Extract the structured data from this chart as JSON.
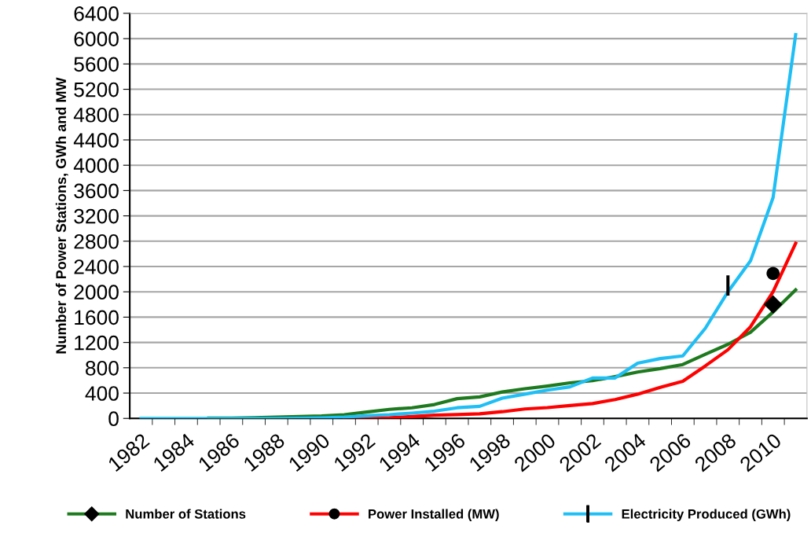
{
  "chart_data": {
    "type": "line",
    "ylabel": "Number of Power Stations, GWh and MW",
    "categories": [
      "1982",
      null,
      "1984",
      null,
      "1986",
      null,
      "1988",
      null,
      "1990",
      null,
      "1992",
      null,
      "1994",
      null,
      "1996",
      null,
      "1998",
      null,
      "2000",
      null,
      "2002",
      null,
      "2004",
      null,
      "2006",
      null,
      "2008",
      null,
      "2010",
      null
    ],
    "series": [
      {
        "name": "Number of Stations",
        "color": "#1e7a1e",
        "values": [
          null,
          null,
          null,
          5,
          6,
          10,
          20,
          30,
          38,
          59,
          101,
          143,
          168,
          219,
          312,
          340,
          417,
          468,
          511,
          562,
          596,
          660,
          732,
          787,
          851,
          1013,
          1170,
          1362,
          1681,
          2030
        ]
      },
      {
        "name": "Power Installed (MW)",
        "color": "#ff0000",
        "values": [
          null,
          null,
          null,
          null,
          null,
          null,
          null,
          null,
          null,
          0,
          0,
          10,
          30,
          50,
          60,
          72,
          106,
          149,
          170,
          204,
          234,
          298,
          383,
          489,
          587,
          830,
          1085,
          1447,
          2000,
          2766
        ]
      },
      {
        "name": "Electricity Produced (GWh)",
        "color": "#1fbff5",
        "values": [
          0,
          0,
          0,
          0,
          0,
          0,
          0,
          2,
          8,
          21,
          42,
          59,
          84,
          114,
          168,
          191,
          319,
          383,
          447,
          498,
          638,
          638,
          872,
          945,
          987,
          1425,
          2000,
          2489,
          3489,
          6064
        ]
      },
      {
        "type": "scatter",
        "color": "#000000",
        "marker": "diamond",
        "values": [
          null,
          null,
          null,
          null,
          null,
          null,
          null,
          null,
          null,
          null,
          null,
          null,
          null,
          null,
          null,
          null,
          null,
          null,
          null,
          null,
          null,
          null,
          null,
          null,
          null,
          null,
          null,
          null,
          1800,
          null
        ]
      },
      {
        "type": "scatter",
        "color": "#000000",
        "marker": "circle",
        "values": [
          null,
          null,
          null,
          null,
          null,
          null,
          null,
          null,
          null,
          null,
          null,
          null,
          null,
          null,
          null,
          null,
          null,
          null,
          null,
          null,
          null,
          null,
          null,
          null,
          null,
          null,
          null,
          null,
          2290,
          null
        ]
      },
      {
        "type": "bar",
        "color": "#000000",
        "base": [
          null,
          null,
          null,
          null,
          null,
          null,
          null,
          null,
          null,
          null,
          null,
          null,
          null,
          null,
          null,
          null,
          null,
          null,
          null,
          null,
          null,
          null,
          null,
          null,
          null,
          null,
          1940,
          null,
          null,
          null
        ],
        "values": [
          null,
          null,
          null,
          null,
          null,
          null,
          null,
          null,
          null,
          null,
          null,
          null,
          null,
          null,
          null,
          null,
          null,
          null,
          null,
          null,
          null,
          null,
          null,
          null,
          null,
          null,
          320,
          null,
          null,
          null
        ]
      }
    ],
    "ylim": [
      0,
      6400
    ],
    "yticks": [
      0,
      400,
      800,
      1200,
      1600,
      2000,
      2400,
      2800,
      3200,
      3600,
      4000,
      4400,
      4800,
      5200,
      5600,
      6000,
      6400
    ],
    "grid": "y",
    "legend": "bottom"
  }
}
